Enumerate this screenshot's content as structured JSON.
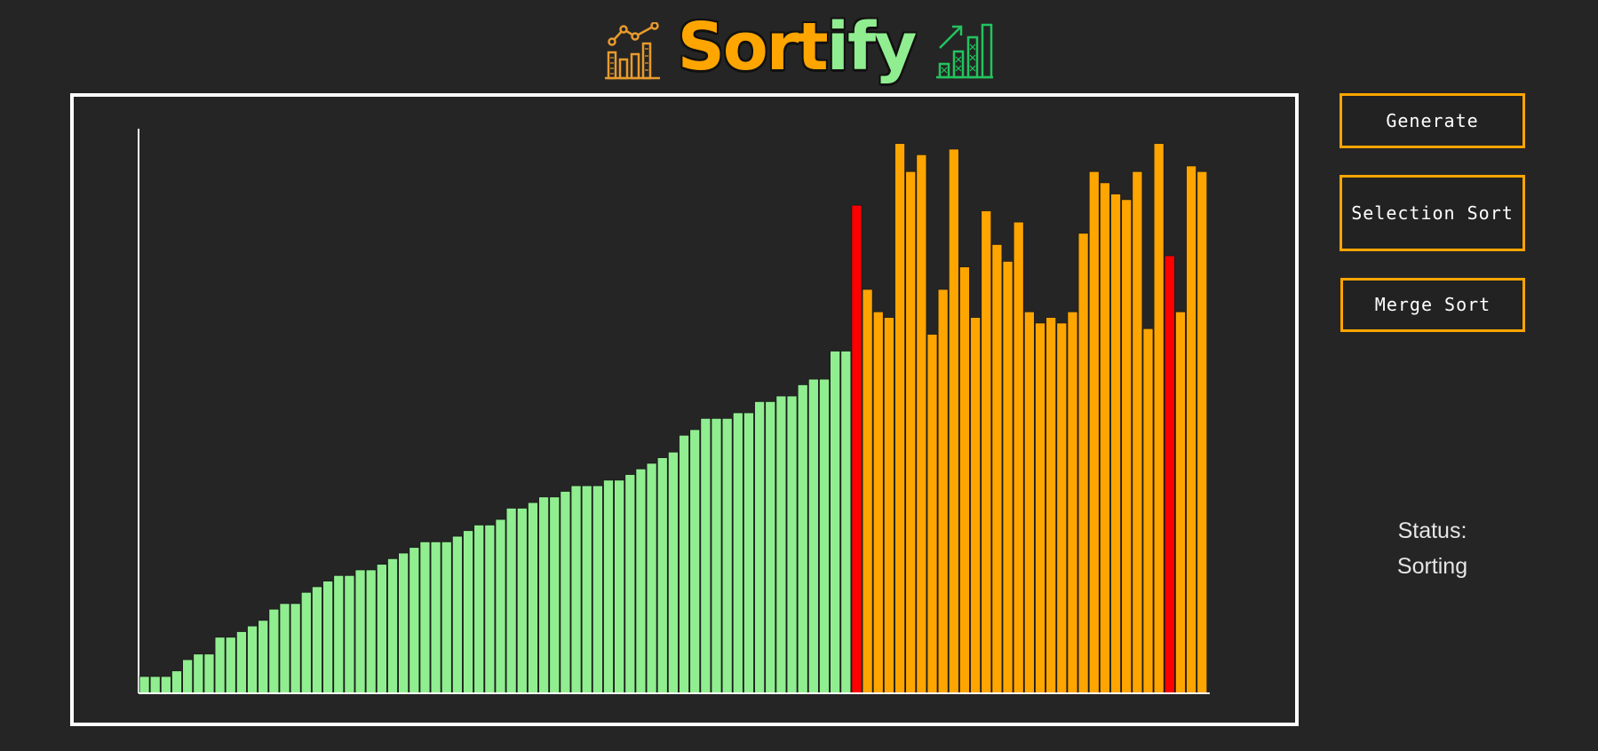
{
  "app": {
    "title_part1": "Sort",
    "title_part2": "ify"
  },
  "icons": {
    "left": "bar-chart-trend-icon",
    "right": "growth-chart-icon",
    "left_color": "#E89B2C",
    "right_color": "#22C55E"
  },
  "buttons": {
    "generate": "Generate",
    "selection_sort": "Selection Sort",
    "merge_sort": "Merge Sort"
  },
  "status": {
    "label": "Status:",
    "value": "Sorting"
  },
  "colors": {
    "background": "#252525",
    "sorted": "#90EE90",
    "unsorted": "#FFA500",
    "compare": "#FF0000",
    "frame": "#FFFFFF",
    "button_border": "#FFA500"
  },
  "chart_data": {
    "type": "bar",
    "title": "",
    "xlabel": "",
    "ylabel": "",
    "ylim": [
      0,
      100
    ],
    "values": [
      3,
      3,
      3,
      4,
      6,
      7,
      7,
      10,
      10,
      11,
      12,
      13,
      15,
      16,
      16,
      18,
      19,
      20,
      21,
      21,
      22,
      22,
      23,
      24,
      25,
      26,
      27,
      27,
      27,
      28,
      29,
      30,
      30,
      31,
      33,
      33,
      34,
      35,
      35,
      36,
      37,
      37,
      37,
      38,
      38,
      39,
      40,
      41,
      42,
      43,
      46,
      47,
      49,
      49,
      49,
      50,
      50,
      52,
      52,
      53,
      53,
      55,
      56,
      56,
      61,
      61
    ],
    "unsorted_values": [
      87,
      72,
      68,
      67,
      98,
      93,
      96,
      64,
      72,
      97,
      76,
      67,
      86,
      80,
      77,
      84,
      68,
      66,
      67,
      66,
      68,
      82,
      93,
      91,
      89,
      88,
      93,
      65,
      98,
      78,
      68,
      94,
      93
    ]
  },
  "sort_state": {
    "sorted_count": 66,
    "compare_indices": [
      66,
      95
    ]
  }
}
